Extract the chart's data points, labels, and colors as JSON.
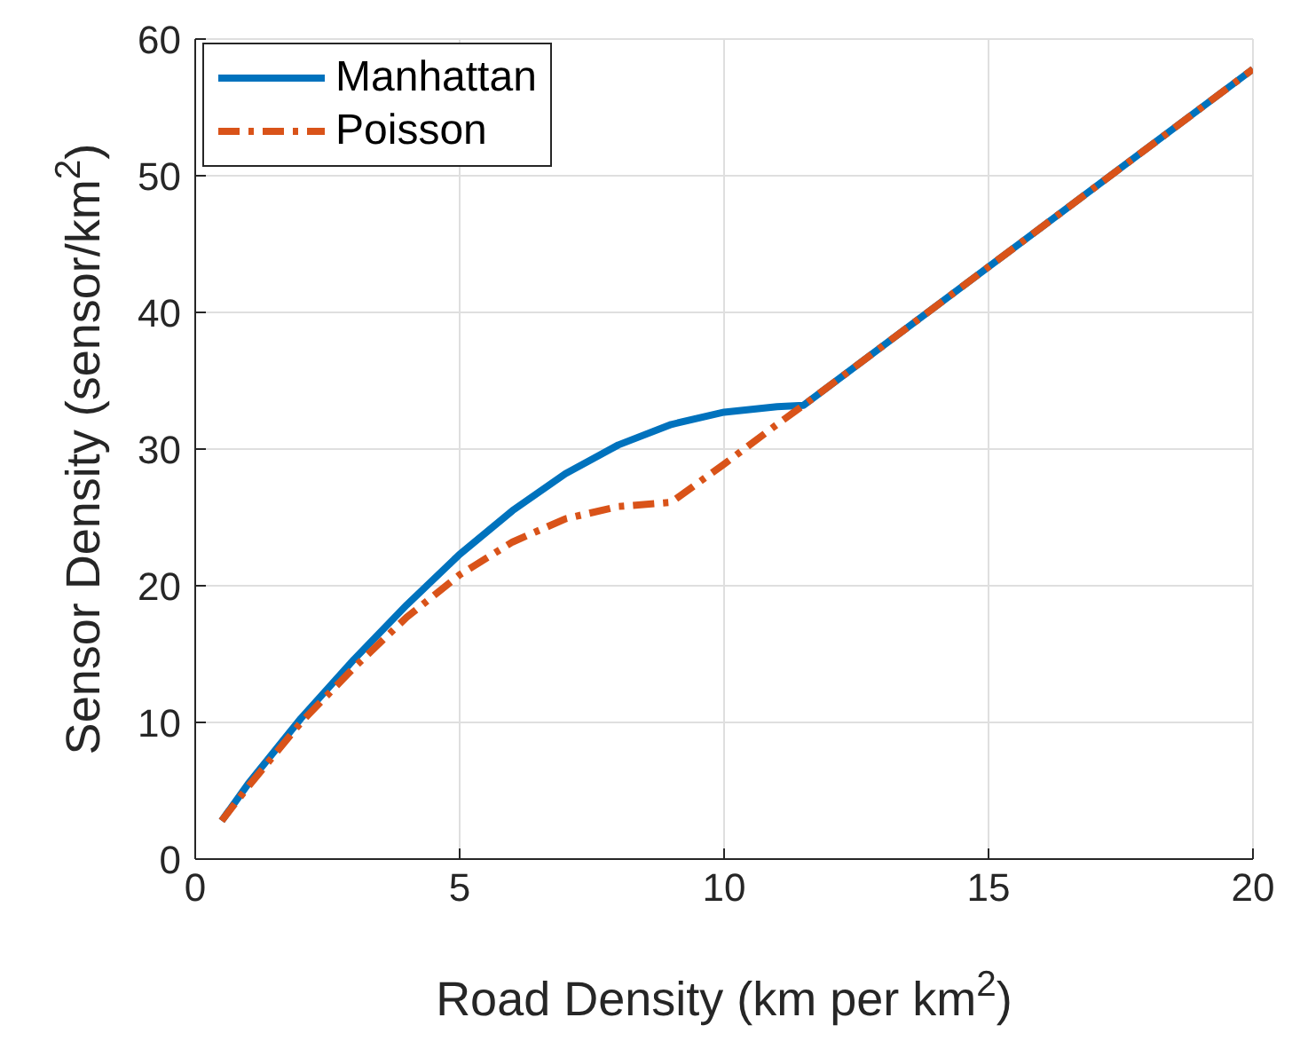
{
  "chart_data": {
    "type": "line",
    "xlabel": "Road Density (km per km$^{2}$)",
    "ylabel": "Sensor Density (sensor/km$^{2}$)",
    "x": [
      0.5,
      1,
      2,
      3,
      4,
      5,
      6,
      7,
      8,
      9,
      10,
      11,
      11.5,
      20
    ],
    "series": [
      {
        "name": "Manhattan",
        "color": "#0072bd",
        "line_style": "solid",
        "values": [
          2.8,
          5.5,
          10.3,
          14.6,
          18.6,
          22.3,
          25.5,
          28.2,
          30.3,
          31.8,
          32.7,
          33.1,
          33.2,
          57.8
        ]
      },
      {
        "name": "Poisson",
        "color": "#d95319",
        "line_style": "dashed",
        "values": [
          2.8,
          5.3,
          10,
          14,
          17.7,
          20.8,
          23.2,
          24.9,
          25.8,
          26.1,
          28.9,
          31.8,
          33.2,
          57.8
        ]
      }
    ],
    "xlim": [
      0,
      20
    ],
    "xticks": [
      0,
      5,
      10,
      15,
      20
    ],
    "ylim": [
      0,
      60
    ],
    "yticks": [
      0,
      10,
      20,
      30,
      40,
      50,
      60
    ],
    "grid": true,
    "legend": "top left",
    "marker": "none"
  }
}
